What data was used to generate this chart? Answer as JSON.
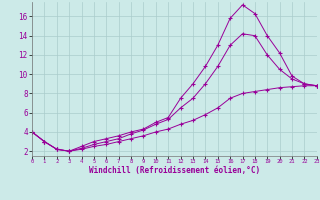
{
  "xlabel": "Windchill (Refroidissement éolien,°C)",
  "background_color": "#cceae8",
  "grid_color": "#aacccc",
  "line_color": "#990099",
  "xlim": [
    0,
    23
  ],
  "ylim": [
    1.5,
    17.5
  ],
  "yticks": [
    2,
    4,
    6,
    8,
    10,
    12,
    14,
    16
  ],
  "xticks": [
    0,
    1,
    2,
    3,
    4,
    5,
    6,
    7,
    8,
    9,
    10,
    11,
    12,
    13,
    14,
    15,
    16,
    17,
    18,
    19,
    20,
    21,
    22,
    23
  ],
  "line1_x": [
    0,
    1,
    2,
    3,
    4,
    5,
    6,
    7,
    8,
    9,
    10,
    11,
    12,
    13,
    14,
    15,
    16,
    17,
    18,
    19,
    20,
    21,
    22,
    23
  ],
  "line1_y": [
    4.0,
    3.0,
    2.2,
    2.0,
    2.5,
    3.0,
    3.3,
    3.6,
    4.0,
    4.3,
    5.0,
    5.5,
    7.5,
    9.0,
    10.8,
    13.0,
    15.8,
    17.2,
    16.3,
    14.0,
    12.2,
    9.8,
    9.0,
    8.8
  ],
  "line2_x": [
    0,
    1,
    2,
    3,
    4,
    5,
    6,
    7,
    8,
    9,
    10,
    11,
    12,
    13,
    14,
    15,
    16,
    17,
    18,
    19,
    20,
    21,
    22,
    23
  ],
  "line2_y": [
    4.0,
    3.0,
    2.2,
    2.0,
    2.3,
    2.7,
    3.0,
    3.3,
    3.8,
    4.2,
    4.8,
    5.3,
    6.5,
    7.5,
    9.0,
    10.8,
    13.0,
    14.2,
    14.0,
    12.0,
    10.5,
    9.5,
    9.0,
    8.8
  ],
  "line3_x": [
    0,
    1,
    2,
    3,
    4,
    5,
    6,
    7,
    8,
    9,
    10,
    11,
    12,
    13,
    14,
    15,
    16,
    17,
    18,
    19,
    20,
    21,
    22,
    23
  ],
  "line3_y": [
    4.0,
    3.0,
    2.2,
    2.0,
    2.2,
    2.5,
    2.7,
    3.0,
    3.3,
    3.6,
    4.0,
    4.3,
    4.8,
    5.2,
    5.8,
    6.5,
    7.5,
    8.0,
    8.2,
    8.4,
    8.6,
    8.7,
    8.8,
    8.8
  ]
}
